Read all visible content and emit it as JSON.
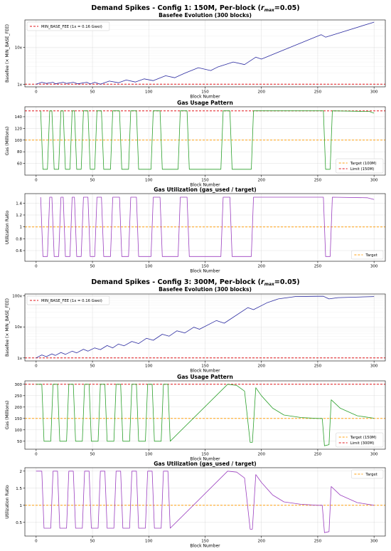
{
  "chart_data": [
    {
      "type": "line",
      "suptitle": "Demand Spikes - Config 1: 150M, Per-block (r_max=0.05)",
      "title": "Basefee Evolution (300 blocks)",
      "xlabel": "Block Number",
      "ylabel": "Basefee (× MIN_BASE_FEE)",
      "yscale": "log",
      "xlim": [
        -10,
        310
      ],
      "ylim": [
        0.85,
        55
      ],
      "xticks": [
        0,
        50,
        100,
        150,
        200,
        250,
        300
      ],
      "yticks": [
        1,
        10
      ],
      "ytick_labels": [
        "1x",
        "10x"
      ],
      "grid": true,
      "legend_position": "top-left",
      "legend": [
        "MIN_BASE_FEE (1x = 0.16 Gwei)"
      ],
      "series": [
        {
          "name": "",
          "color": "#2b2ba0",
          "x": [
            0,
            5,
            9,
            15,
            17,
            24,
            27,
            33,
            37,
            45,
            48,
            52,
            57,
            65,
            73,
            80,
            88,
            96,
            104,
            115,
            123,
            132,
            144,
            155,
            161,
            175,
            185,
            195,
            200,
            253,
            257,
            300
          ],
          "y": [
            1.0,
            1.13,
            1.05,
            1.13,
            1.03,
            1.13,
            1.05,
            1.13,
            1.03,
            1.13,
            1.02,
            1.13,
            1.0,
            1.22,
            1.1,
            1.3,
            1.15,
            1.4,
            1.25,
            1.7,
            1.5,
            2.0,
            2.8,
            2.35,
            2.9,
            4.0,
            3.4,
            5.4,
            4.8,
            22,
            18.8,
            48
          ]
        },
        {
          "name": "MIN_BASE_FEE (1x = 0.16 Gwei)",
          "color": "#e0161b",
          "style": "dashed",
          "x": [
            -10,
            310
          ],
          "y": [
            1,
            1
          ]
        }
      ]
    },
    {
      "type": "line",
      "title": "Gas Usage Pattern",
      "xlabel": "Block Number",
      "ylabel": "Gas (Millions)",
      "xlim": [
        -10,
        310
      ],
      "ylim": [
        40,
        157
      ],
      "xticks": [
        0,
        50,
        100,
        150,
        200,
        250,
        300
      ],
      "yticks": [
        60,
        80,
        100,
        120,
        140
      ],
      "grid": true,
      "legend_position": "bottom-right",
      "legend": [
        "Target (100M)",
        "Limit (150M)"
      ],
      "series": [
        {
          "name": "",
          "color": "#2ca02c",
          "x": [
            4,
            6,
            10,
            12,
            14,
            16,
            20,
            22,
            24,
            26,
            30,
            32,
            34,
            36,
            40,
            42,
            46,
            48,
            52,
            54,
            58,
            60,
            66,
            68,
            74,
            76,
            82,
            84,
            89,
            91,
            102,
            104,
            110,
            112,
            126,
            128,
            134,
            136,
            164,
            166,
            172,
            174,
            191,
            193,
            198,
            200,
            255,
            257,
            261,
            263,
            296,
            300
          ],
          "y": [
            150,
            50,
            50,
            150,
            150,
            50,
            50,
            150,
            150,
            50,
            50,
            150,
            150,
            50,
            50,
            150,
            150,
            50,
            50,
            150,
            150,
            50,
            50,
            150,
            150,
            50,
            50,
            150,
            150,
            50,
            50,
            150,
            150,
            50,
            50,
            150,
            150,
            50,
            50,
            150,
            150,
            50,
            50,
            150,
            150,
            150,
            150,
            50,
            50,
            150,
            149,
            146
          ]
        },
        {
          "name": "Target (100M)",
          "color": "#ffa010",
          "style": "dashed",
          "x": [
            -10,
            310
          ],
          "y": [
            100,
            100
          ]
        },
        {
          "name": "Limit (150M)",
          "color": "#e0161b",
          "style": "dashed",
          "x": [
            -10,
            310
          ],
          "y": [
            150,
            150
          ]
        }
      ]
    },
    {
      "type": "line",
      "title": "Gas Utilization (gas_used / target)",
      "xlabel": "Block Number",
      "ylabel": "Utilization Ratio",
      "xlim": [
        -10,
        310
      ],
      "ylim": [
        0.42,
        1.56
      ],
      "xticks": [
        0,
        50,
        100,
        150,
        200,
        250,
        300
      ],
      "yticks": [
        0.6,
        0.8,
        1.0,
        1.2,
        1.4
      ],
      "grid": true,
      "legend_position": "bottom-right",
      "legend": [
        "Target"
      ],
      "series": [
        {
          "name": "",
          "color": "#9b3fbf",
          "x": [
            4,
            6,
            10,
            12,
            14,
            16,
            20,
            22,
            24,
            26,
            30,
            32,
            34,
            36,
            40,
            42,
            46,
            48,
            52,
            54,
            58,
            60,
            66,
            68,
            74,
            76,
            82,
            84,
            89,
            91,
            102,
            104,
            110,
            112,
            126,
            128,
            134,
            136,
            164,
            166,
            172,
            174,
            191,
            193,
            198,
            200,
            255,
            257,
            261,
            263,
            294,
            300
          ],
          "y": [
            1.5,
            0.5,
            0.5,
            1.5,
            1.5,
            0.5,
            0.5,
            1.5,
            1.5,
            0.5,
            0.5,
            1.5,
            1.5,
            0.5,
            0.5,
            1.5,
            1.5,
            0.5,
            0.5,
            1.5,
            1.5,
            0.5,
            0.5,
            1.5,
            1.5,
            0.5,
            0.5,
            1.5,
            1.5,
            0.5,
            0.5,
            1.5,
            1.5,
            0.5,
            0.5,
            1.5,
            1.5,
            0.5,
            0.5,
            1.5,
            1.5,
            0.5,
            0.5,
            1.5,
            1.5,
            1.5,
            1.5,
            0.5,
            0.5,
            1.5,
            1.49,
            1.46
          ]
        },
        {
          "name": "Target",
          "color": "#ffa010",
          "style": "dashed",
          "x": [
            -10,
            310
          ],
          "y": [
            1,
            1
          ]
        }
      ]
    },
    {
      "type": "line",
      "suptitle": "Demand Spikes - Config 3: 300M, Per-block (r_max=0.05)",
      "title": "Basefee Evolution (300 blocks)",
      "xlabel": "Block Number",
      "ylabel": "Basefee (× MIN_BASE_FEE)",
      "yscale": "log",
      "xlim": [
        -10,
        310
      ],
      "ylim": [
        0.8,
        115
      ],
      "xticks": [
        0,
        50,
        100,
        150,
        200,
        250,
        300
      ],
      "yticks": [
        1,
        10,
        100
      ],
      "ytick_labels": [
        "1x",
        "10x",
        "100x"
      ],
      "grid": true,
      "legend_position": "top-left",
      "legend": [
        "MIN_BASE_FEE (1x = 0.16 Gwei)"
      ],
      "series": [
        {
          "name": "",
          "color": "#2b2ba0",
          "x": [
            0,
            5,
            9,
            14,
            17,
            22,
            26,
            32,
            36,
            42,
            46,
            52,
            57,
            63,
            68,
            73,
            78,
            85,
            91,
            98,
            104,
            112,
            118,
            125,
            132,
            140,
            145,
            160,
            167,
            188,
            193,
            205,
            215,
            230,
            250,
            255,
            260,
            268,
            300
          ],
          "y": [
            1.0,
            1.25,
            1.1,
            1.35,
            1.2,
            1.5,
            1.3,
            1.65,
            1.45,
            1.9,
            1.65,
            2.1,
            1.85,
            2.5,
            2.1,
            2.8,
            2.45,
            3.4,
            2.9,
            4.3,
            3.7,
            5.8,
            5.0,
            7.5,
            6.4,
            9.8,
            8.4,
            16,
            13.2,
            42,
            36,
            60,
            80,
            95,
            97,
            97,
            80,
            88,
            95
          ]
        },
        {
          "name": "MIN_BASE_FEE (1x = 0.16 Gwei)",
          "color": "#e0161b",
          "style": "dashed",
          "x": [
            -10,
            310
          ],
          "y": [
            1,
            1
          ]
        }
      ]
    },
    {
      "type": "line",
      "title": "Gas Usage Pattern",
      "xlabel": "Block Number",
      "ylabel": "Gas (Millions)",
      "xlim": [
        -10,
        310
      ],
      "ylim": [
        15,
        315
      ],
      "xticks": [
        0,
        50,
        100,
        150,
        200,
        250,
        300
      ],
      "yticks": [
        50,
        100,
        150,
        200,
        250,
        300
      ],
      "grid": true,
      "legend_position": "bottom-right",
      "legend": [
        "Target (150M)",
        "Limit (300M)"
      ],
      "series": [
        {
          "name": "",
          "color": "#2ca02c",
          "x": [
            0,
            5,
            7,
            13,
            15,
            19,
            21,
            27,
            29,
            33,
            35,
            41,
            43,
            47,
            49,
            55,
            57,
            61,
            63,
            69,
            71,
            75,
            77,
            83,
            85,
            89,
            91,
            97,
            99,
            103,
            105,
            111,
            113,
            117,
            119,
            170,
            178,
            185,
            190,
            192,
            195,
            200,
            210,
            220,
            235,
            250,
            254,
            256,
            260,
            262,
            270,
            285,
            300
          ],
          "y": [
            300,
            300,
            50,
            50,
            300,
            300,
            50,
            50,
            300,
            300,
            50,
            50,
            300,
            300,
            50,
            50,
            300,
            300,
            50,
            50,
            300,
            300,
            50,
            50,
            300,
            300,
            50,
            50,
            300,
            300,
            50,
            50,
            300,
            300,
            50,
            300,
            295,
            270,
            45,
            45,
            285,
            250,
            195,
            165,
            154,
            150,
            150,
            30,
            35,
            232,
            195,
            162,
            151
          ]
        },
        {
          "name": "Target (150M)",
          "color": "#ffa010",
          "style": "dashed",
          "x": [
            -10,
            310
          ],
          "y": [
            150,
            150
          ]
        },
        {
          "name": "Limit (300M)",
          "color": "#e0161b",
          "style": "dashed",
          "x": [
            -10,
            310
          ],
          "y": [
            300,
            300
          ]
        }
      ]
    },
    {
      "type": "line",
      "title": "Gas Utilization (gas_used / target)",
      "xlabel": "Block Number",
      "ylabel": "Utilization Ratio",
      "xlim": [
        -10,
        310
      ],
      "ylim": [
        0.1,
        2.1
      ],
      "xticks": [
        0,
        50,
        100,
        150,
        200,
        250,
        300
      ],
      "yticks": [
        0.5,
        1.0,
        1.5,
        2.0
      ],
      "grid": true,
      "legend_position": "top-right",
      "legend": [
        "Target"
      ],
      "series": [
        {
          "name": "",
          "color": "#9b3fbf",
          "x": [
            0,
            5,
            7,
            13,
            15,
            19,
            21,
            27,
            29,
            33,
            35,
            41,
            43,
            47,
            49,
            55,
            57,
            61,
            63,
            69,
            71,
            75,
            77,
            83,
            85,
            89,
            91,
            97,
            99,
            103,
            105,
            111,
            113,
            117,
            119,
            170,
            178,
            185,
            190,
            192,
            195,
            200,
            210,
            220,
            235,
            250,
            254,
            256,
            260,
            262,
            270,
            285,
            300
          ],
          "y": [
            2.0,
            2.0,
            0.33,
            0.33,
            2.0,
            2.0,
            0.33,
            0.33,
            2.0,
            2.0,
            0.33,
            0.33,
            2.0,
            2.0,
            0.33,
            0.33,
            2.0,
            2.0,
            0.33,
            0.33,
            2.0,
            2.0,
            0.33,
            0.33,
            2.0,
            2.0,
            0.33,
            0.33,
            2.0,
            2.0,
            0.33,
            0.33,
            2.0,
            2.0,
            0.33,
            2.0,
            1.97,
            1.8,
            0.3,
            0.3,
            1.9,
            1.67,
            1.3,
            1.1,
            1.03,
            1.0,
            1.0,
            0.2,
            0.23,
            1.55,
            1.3,
            1.08,
            1.0
          ]
        },
        {
          "name": "Target",
          "color": "#ffa010",
          "style": "dashed",
          "x": [
            -10,
            310
          ],
          "y": [
            1,
            1
          ]
        }
      ]
    }
  ]
}
